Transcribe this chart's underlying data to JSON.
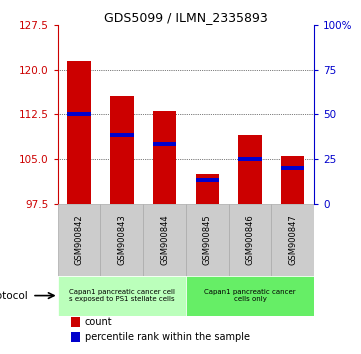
{
  "title": "GDS5099 / ILMN_2335893",
  "samples": [
    "GSM900842",
    "GSM900843",
    "GSM900844",
    "GSM900845",
    "GSM900846",
    "GSM900847"
  ],
  "count_values": [
    121.5,
    115.5,
    113.0,
    102.5,
    109.0,
    105.5
  ],
  "percentile_values": [
    112.5,
    109.0,
    107.5,
    101.5,
    105.0,
    103.5
  ],
  "ymin": 97.5,
  "ymax": 127.5,
  "yticks_left": [
    97.5,
    105.0,
    112.5,
    120.0,
    127.5
  ],
  "yticks_right_pos": [
    97.5,
    105.0,
    112.5,
    120.0,
    127.5
  ],
  "right_yaxis_labels": [
    "0",
    "25",
    "50",
    "75",
    "100%"
  ],
  "bar_color": "#cc0000",
  "percentile_color": "#0000cc",
  "bar_width": 0.55,
  "protocol_groups": [
    {
      "label": "Capan1 pancreatic cancer cell\ns exposed to PS1 stellate cells",
      "start": 0,
      "end": 3,
      "color": "#bbffbb"
    },
    {
      "label": "Capan1 pancreatic cancer\ncells only",
      "start": 3,
      "end": 6,
      "color": "#66ee66"
    }
  ],
  "legend_items": [
    {
      "color": "#cc0000",
      "label": "count"
    },
    {
      "color": "#0000cc",
      "label": "percentile rank within the sample"
    }
  ],
  "background_color": "#ffffff",
  "plot_bg_color": "#ffffff",
  "left_axis_color": "#cc0000",
  "right_axis_color": "#0000cc",
  "grey_col_color": "#cccccc",
  "grey_border_color": "#aaaaaa"
}
